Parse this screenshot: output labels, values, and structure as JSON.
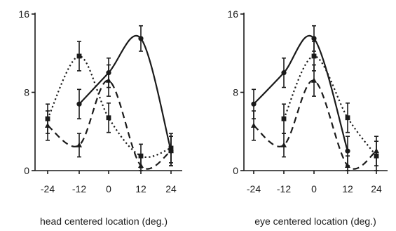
{
  "chart_data": [
    {
      "type": "line",
      "xlabel": "head centered location (deg.)",
      "ylabel": "",
      "x": [
        -24,
        -12,
        0,
        12,
        24
      ],
      "xticks": [
        "-24",
        "-12",
        "0",
        "12",
        "24"
      ],
      "yticks": [
        "0",
        "8",
        "16"
      ],
      "xlim": [
        -28,
        28
      ],
      "ylim": [
        0,
        16
      ],
      "series": [
        {
          "style": "solid",
          "marker": "circle",
          "points": [
            [
              -12,
              6.8
            ],
            [
              0,
              10
            ],
            [
              12,
              13.5
            ],
            [
              24,
              2
            ]
          ],
          "errors": [
            1.5,
            1.5,
            1.3,
            1.5
          ]
        },
        {
          "style": "dotted",
          "marker": "square",
          "points": [
            [
              -24,
              5.3
            ],
            [
              -12,
              11.7
            ],
            [
              0,
              5.4
            ],
            [
              12,
              1.5
            ],
            [
              24,
              2.3
            ]
          ],
          "errors": [
            1.5,
            1.5,
            1.5,
            1.2,
            1.5
          ]
        },
        {
          "style": "dashed",
          "marker": "triangle",
          "points": [
            [
              -24,
              4.6
            ],
            [
              -12,
              2.6
            ],
            [
              0,
              9.2
            ],
            [
              12,
              0.5
            ],
            [
              24,
              2
            ]
          ],
          "errors": [
            1.5,
            1.2,
            1.6,
            1,
            1.5
          ]
        }
      ]
    },
    {
      "type": "line",
      "xlabel": "eye centered location (deg.)",
      "ylabel": "",
      "x": [
        -24,
        -12,
        0,
        12,
        24
      ],
      "xticks": [
        "-24",
        "-12",
        "0",
        "12",
        "24"
      ],
      "yticks": [
        "0",
        "8",
        "16"
      ],
      "xlim": [
        -28,
        28
      ],
      "ylim": [
        0,
        16
      ],
      "series": [
        {
          "style": "solid",
          "marker": "circle",
          "points": [
            [
              -24,
              6.8
            ],
            [
              -12,
              10
            ],
            [
              0,
              13.5
            ],
            [
              12,
              2
            ]
          ],
          "errors": [
            1.5,
            1.5,
            1.3,
            1.5
          ]
        },
        {
          "style": "dotted",
          "marker": "square",
          "points": [
            [
              -12,
              5.3
            ],
            [
              0,
              11.7
            ],
            [
              12,
              5.4
            ],
            [
              24,
              1.5
            ]
          ],
          "errors": [
            1.5,
            1.5,
            1.5,
            1.5
          ]
        },
        {
          "style": "dashed",
          "marker": "triangle",
          "points": [
            [
              -24,
              4.6
            ],
            [
              -12,
              2.6
            ],
            [
              0,
              9.2
            ],
            [
              12,
              0.5
            ],
            [
              24,
              2
            ]
          ],
          "errors": [
            1.5,
            1.2,
            1.6,
            1,
            1.5
          ]
        }
      ]
    }
  ]
}
